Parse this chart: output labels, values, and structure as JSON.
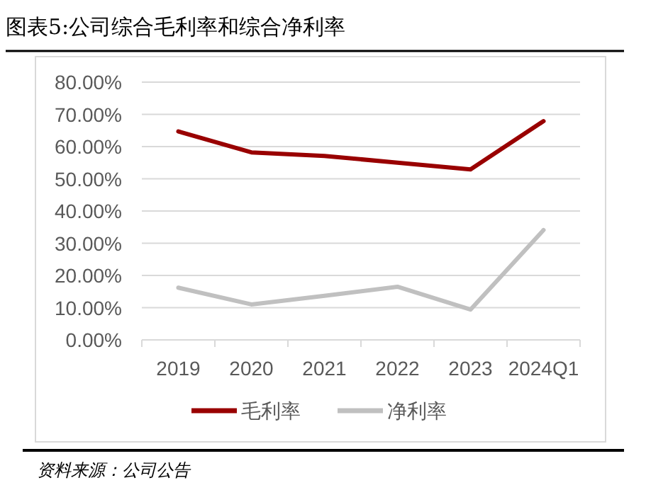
{
  "chart_data": {
    "type": "line",
    "title": "图表5:公司综合毛利率和综合净利率",
    "categories": [
      "2019",
      "2020",
      "2021",
      "2022",
      "2023",
      "2024Q1"
    ],
    "series": [
      {
        "name": "毛利率",
        "color": "#990000",
        "values": [
          64.7,
          58.2,
          57.1,
          55.0,
          52.9,
          67.9
        ]
      },
      {
        "name": "净利率",
        "color": "#c0c0c0",
        "values": [
          16.2,
          11.0,
          13.7,
          16.5,
          9.4,
          34.1
        ]
      }
    ],
    "ylim": [
      0,
      80
    ],
    "yticks": [
      {
        "value": 0,
        "label": "0.00%"
      },
      {
        "value": 10,
        "label": "10.00%"
      },
      {
        "value": 20,
        "label": "20.00%"
      },
      {
        "value": 30,
        "label": "30.00%"
      },
      {
        "value": 40,
        "label": "40.00%"
      },
      {
        "value": 50,
        "label": "50.00%"
      },
      {
        "value": 60,
        "label": "60.00%"
      },
      {
        "value": 70,
        "label": "70.00%"
      },
      {
        "value": 80,
        "label": "80.00%"
      }
    ],
    "grid": "y",
    "legend": "bottom",
    "marker": "none",
    "line_style": "solid",
    "annotations": [
      "资料来源：公司公告"
    ]
  }
}
